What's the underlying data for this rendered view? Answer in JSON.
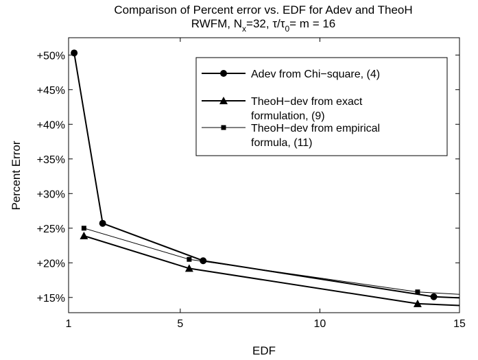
{
  "chart_data": {
    "type": "line",
    "title": "Comparison of Percent error vs. EDF for Adev and TheoH",
    "subtitle": {
      "prefix": "RWFM, N",
      "sub1": "x",
      "mid": "=32, τ/τ",
      "sub2": "0",
      "suffix": "= m = 16"
    },
    "xlabel": "EDF",
    "ylabel": "Percent Error",
    "xlim": [
      1,
      15
    ],
    "ylim": [
      12.8,
      52.5
    ],
    "x_ticks": [
      1,
      5,
      10,
      15
    ],
    "y_ticks": [
      15,
      20,
      25,
      30,
      35,
      40,
      45,
      50
    ],
    "y_tick_labels": [
      "+15%",
      "+20%",
      "+25%",
      "+30%",
      "+35%",
      "+40%",
      "+45%",
      "+50%"
    ],
    "grid": false,
    "legend_position": "top-right",
    "series": [
      {
        "name": "Adev from Chi−square, (4)",
        "legend_lines": [
          "Adev from Chi−square, (4)"
        ],
        "marker": "circle",
        "line_width": 2,
        "x": [
          1.2,
          2.22,
          5.82,
          14.08,
          15.2
        ],
        "y": [
          50.3,
          25.7,
          20.3,
          15.1,
          14.9
        ],
        "marker_indices": [
          0,
          1,
          2,
          3
        ]
      },
      {
        "name": "TheoH−dev from exact formulation, (9)",
        "legend_lines": [
          "TheoH−dev from exact",
          "formulation, (9)"
        ],
        "marker": "triangle",
        "line_width": 2,
        "x": [
          1.55,
          5.32,
          13.5,
          15.2
        ],
        "y": [
          23.9,
          19.2,
          14.1,
          13.8
        ],
        "marker_indices": [
          0,
          1,
          2
        ]
      },
      {
        "name": "TheoH−dev from empirical formula, (11)",
        "legend_lines": [
          "TheoH−dev from empirical",
          "formula, (11)"
        ],
        "marker": "square",
        "line_width": 1,
        "x": [
          1.55,
          5.32,
          13.5,
          15.2
        ],
        "y": [
          25.0,
          20.5,
          15.8,
          15.4
        ],
        "marker_indices": [
          0,
          1,
          2
        ]
      }
    ]
  }
}
